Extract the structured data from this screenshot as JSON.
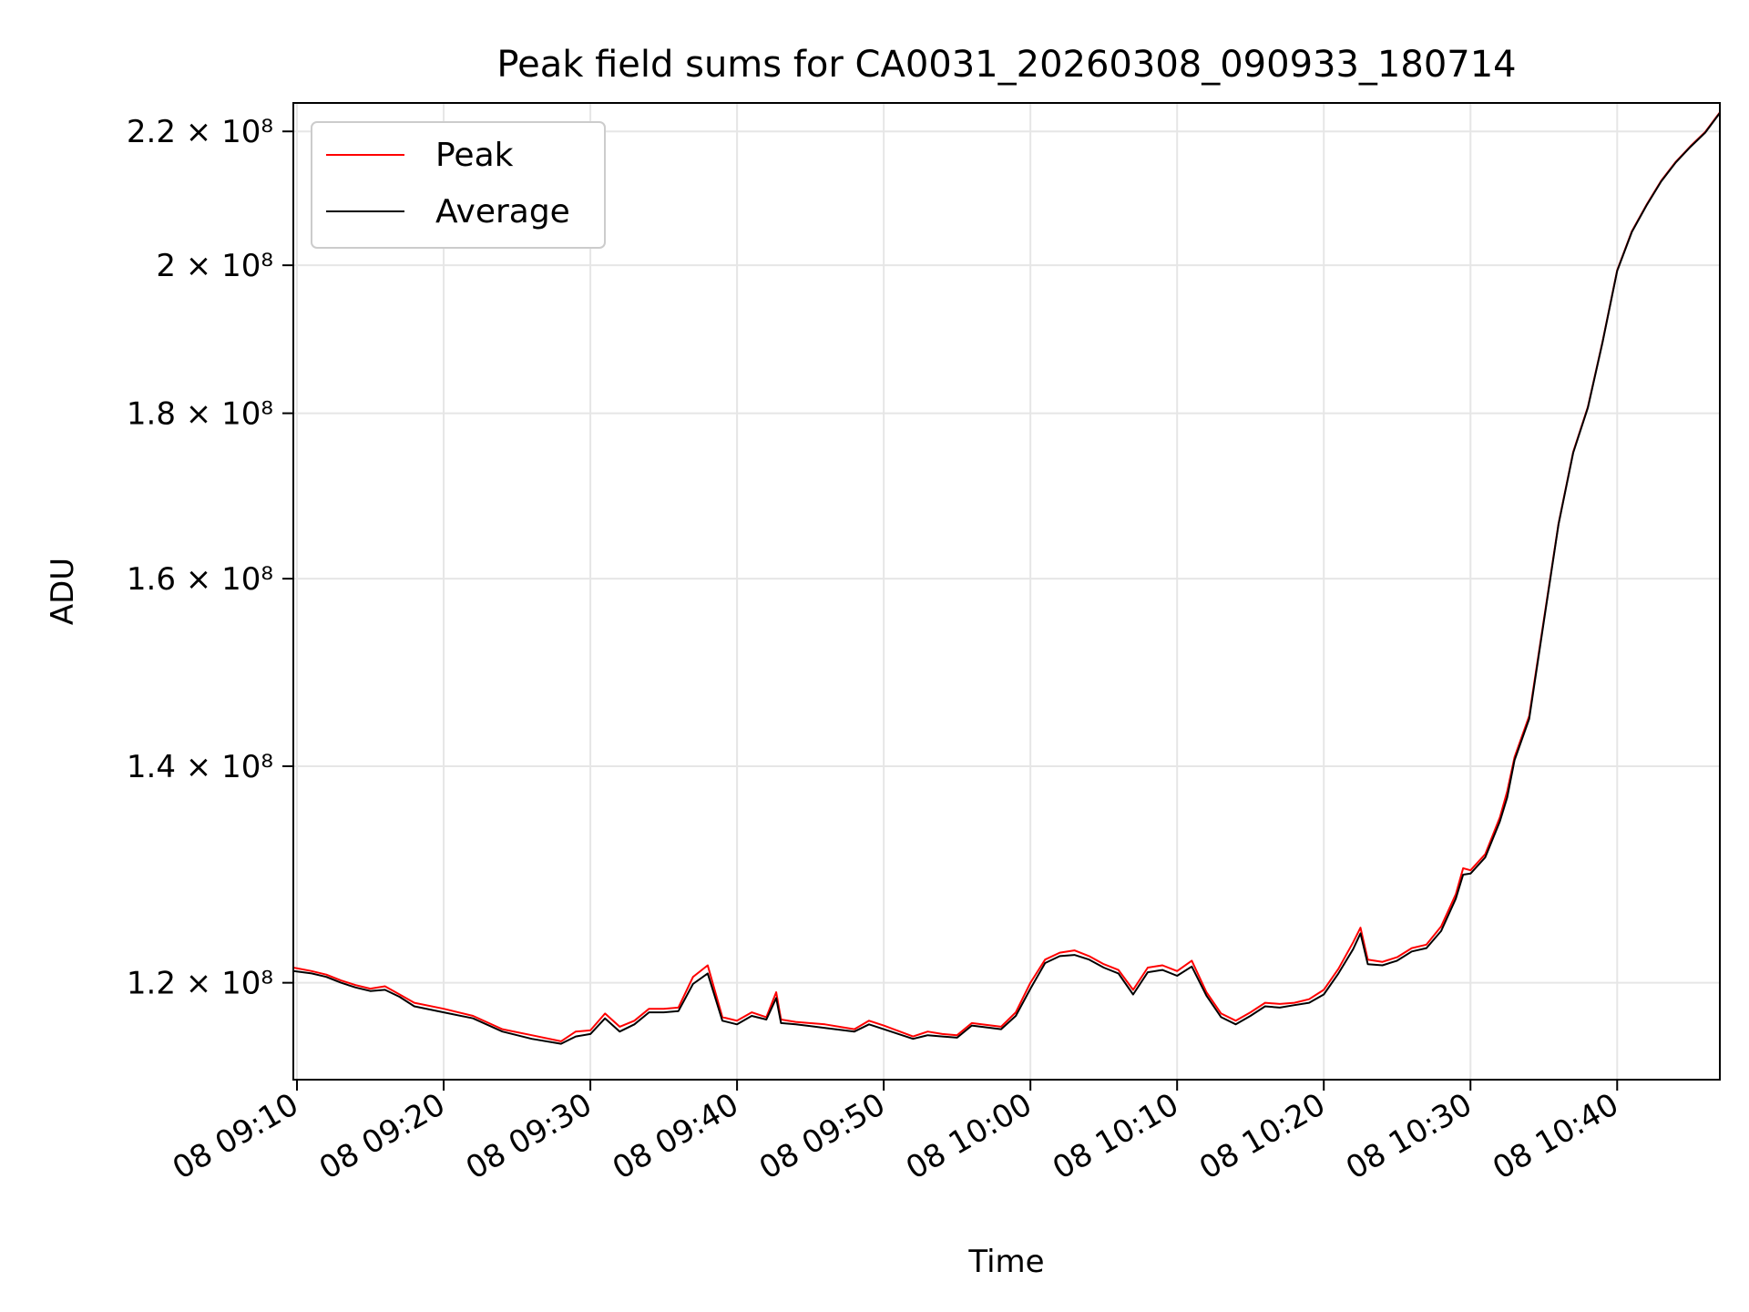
{
  "chart_data": {
    "type": "line",
    "title": "Peak field sums for CA0031_20260308_090933_180714",
    "xlabel": "Time",
    "ylabel": "ADU",
    "y_scale": "log",
    "ylim": [
      112000000,
      224500000
    ],
    "xlim": [
      "2026-03-08 09:09:45",
      "2026-03-08 10:47:00"
    ],
    "x_ticks": [
      {
        "t": "2026-03-08 09:10:00",
        "label": "08 09:10"
      },
      {
        "t": "2026-03-08 09:20:00",
        "label": "08 09:20"
      },
      {
        "t": "2026-03-08 09:30:00",
        "label": "08 09:30"
      },
      {
        "t": "2026-03-08 09:40:00",
        "label": "08 09:40"
      },
      {
        "t": "2026-03-08 09:50:00",
        "label": "08 09:50"
      },
      {
        "t": "2026-03-08 10:00:00",
        "label": "08 10:00"
      },
      {
        "t": "2026-03-08 10:10:00",
        "label": "08 10:10"
      },
      {
        "t": "2026-03-08 10:20:00",
        "label": "08 10:20"
      },
      {
        "t": "2026-03-08 10:30:00",
        "label": "08 10:30"
      },
      {
        "t": "2026-03-08 10:40:00",
        "label": "08 10:40"
      }
    ],
    "y_ticks": [
      {
        "v": 120000000,
        "label": "1.2 × 10⁸"
      },
      {
        "v": 140000000,
        "label": "1.4 × 10⁸"
      },
      {
        "v": 160000000,
        "label": "1.6 × 10⁸"
      },
      {
        "v": 180000000,
        "label": "1.8 × 10⁸"
      },
      {
        "v": 200000000,
        "label": "2 × 10⁸"
      },
      {
        "v": 220000000,
        "label": "2.2 × 10⁸"
      }
    ],
    "grid": true,
    "legend_position": "upper-left",
    "x": [
      "2026-03-08 09:09:45",
      "2026-03-08 09:11:00",
      "2026-03-08 09:12:00",
      "2026-03-08 09:13:00",
      "2026-03-08 09:14:00",
      "2026-03-08 09:15:00",
      "2026-03-08 09:16:00",
      "2026-03-08 09:17:00",
      "2026-03-08 09:18:00",
      "2026-03-08 09:20:00",
      "2026-03-08 09:22:00",
      "2026-03-08 09:24:00",
      "2026-03-08 09:26:00",
      "2026-03-08 09:28:00",
      "2026-03-08 09:29:00",
      "2026-03-08 09:30:00",
      "2026-03-08 09:31:00",
      "2026-03-08 09:32:00",
      "2026-03-08 09:33:00",
      "2026-03-08 09:34:00",
      "2026-03-08 09:35:00",
      "2026-03-08 09:36:00",
      "2026-03-08 09:37:00",
      "2026-03-08 09:38:00",
      "2026-03-08 09:39:00",
      "2026-03-08 09:40:00",
      "2026-03-08 09:41:00",
      "2026-03-08 09:42:00",
      "2026-03-08 09:42:40",
      "2026-03-08 09:43:00",
      "2026-03-08 09:44:00",
      "2026-03-08 09:46:00",
      "2026-03-08 09:48:00",
      "2026-03-08 09:49:00",
      "2026-03-08 09:50:00",
      "2026-03-08 09:52:00",
      "2026-03-08 09:53:00",
      "2026-03-08 09:54:00",
      "2026-03-08 09:55:00",
      "2026-03-08 09:56:00",
      "2026-03-08 09:58:00",
      "2026-03-08 09:59:00",
      "2026-03-08 10:00:00",
      "2026-03-08 10:01:00",
      "2026-03-08 10:02:00",
      "2026-03-08 10:03:00",
      "2026-03-08 10:04:00",
      "2026-03-08 10:05:00",
      "2026-03-08 10:06:00",
      "2026-03-08 10:07:00",
      "2026-03-08 10:08:00",
      "2026-03-08 10:09:00",
      "2026-03-08 10:10:00",
      "2026-03-08 10:11:00",
      "2026-03-08 10:12:00",
      "2026-03-08 10:13:00",
      "2026-03-08 10:14:00",
      "2026-03-08 10:15:00",
      "2026-03-08 10:16:00",
      "2026-03-08 10:17:00",
      "2026-03-08 10:18:00",
      "2026-03-08 10:19:00",
      "2026-03-08 10:20:00",
      "2026-03-08 10:21:00",
      "2026-03-08 10:22:00",
      "2026-03-08 10:22:30",
      "2026-03-08 10:23:00",
      "2026-03-08 10:24:00",
      "2026-03-08 10:25:00",
      "2026-03-08 10:26:00",
      "2026-03-08 10:27:00",
      "2026-03-08 10:28:00",
      "2026-03-08 10:29:00",
      "2026-03-08 10:29:30",
      "2026-03-08 10:30:00",
      "2026-03-08 10:31:00",
      "2026-03-08 10:32:00",
      "2026-03-08 10:32:30",
      "2026-03-08 10:33:00",
      "2026-03-08 10:34:00",
      "2026-03-08 10:35:00",
      "2026-03-08 10:36:00",
      "2026-03-08 10:37:00",
      "2026-03-08 10:38:00",
      "2026-03-08 10:39:00",
      "2026-03-08 10:40:00",
      "2026-03-08 10:41:00",
      "2026-03-08 10:42:00",
      "2026-03-08 10:43:00",
      "2026-03-08 10:44:00",
      "2026-03-08 10:45:00",
      "2026-03-08 10:46:00",
      "2026-03-08 10:47:00"
    ],
    "series": [
      {
        "name": "Peak",
        "color": "#ff0000",
        "values": [
          121300000,
          121000000,
          120700000,
          120200000,
          119800000,
          119500000,
          119700000,
          119000000,
          118300000,
          117800000,
          117200000,
          116100000,
          115600000,
          115100000,
          115900000,
          116000000,
          117400000,
          116300000,
          116800000,
          117800000,
          117800000,
          117900000,
          120500000,
          121500000,
          117100000,
          116800000,
          117500000,
          117100000,
          119200000,
          116900000,
          116700000,
          116500000,
          116100000,
          116800000,
          116400000,
          115500000,
          115900000,
          115700000,
          115600000,
          116600000,
          116300000,
          117500000,
          120000000,
          122000000,
          122600000,
          122800000,
          122300000,
          121600000,
          121100000,
          119400000,
          121300000,
          121500000,
          121000000,
          121900000,
          119200000,
          117400000,
          116800000,
          117500000,
          118300000,
          118200000,
          118300000,
          118600000,
          119400000,
          121200000,
          123500000,
          124800000,
          122000000,
          121800000,
          122200000,
          123000000,
          123300000,
          124900000,
          127800000,
          130200000,
          130000000,
          131500000,
          135000000,
          137500000,
          140900000,
          145100000,
          155400000,
          166400000,
          175100000,
          180800000,
          189400000,
          199300000,
          204900000,
          208800000,
          212400000,
          215300000,
          217700000,
          219900000,
          223000000
        ]
      },
      {
        "name": "Average",
        "color": "#000000",
        "values": [
          121000000,
          120800000,
          120500000,
          120000000,
          119600000,
          119300000,
          119400000,
          118800000,
          118000000,
          117500000,
          117000000,
          115900000,
          115300000,
          114900000,
          115500000,
          115700000,
          117000000,
          115900000,
          116500000,
          117500000,
          117500000,
          117600000,
          119900000,
          120800000,
          116800000,
          116500000,
          117200000,
          116900000,
          118700000,
          116600000,
          116500000,
          116200000,
          115900000,
          116500000,
          116100000,
          115300000,
          115600000,
          115500000,
          115400000,
          116400000,
          116100000,
          117200000,
          119500000,
          121700000,
          122300000,
          122400000,
          122000000,
          121300000,
          120800000,
          119000000,
          120900000,
          121100000,
          120600000,
          121400000,
          118900000,
          117100000,
          116500000,
          117200000,
          118000000,
          117900000,
          118100000,
          118300000,
          119000000,
          120800000,
          122900000,
          124300000,
          121600000,
          121500000,
          121900000,
          122700000,
          123000000,
          124500000,
          127400000,
          129600000,
          129700000,
          131200000,
          134600000,
          136900000,
          140600000,
          144800000,
          155200000,
          166300000,
          175000000,
          180700000,
          189300000,
          199200000,
          204800000,
          208700000,
          212300000,
          215200000,
          217600000,
          219800000,
          222900000
        ]
      }
    ]
  }
}
